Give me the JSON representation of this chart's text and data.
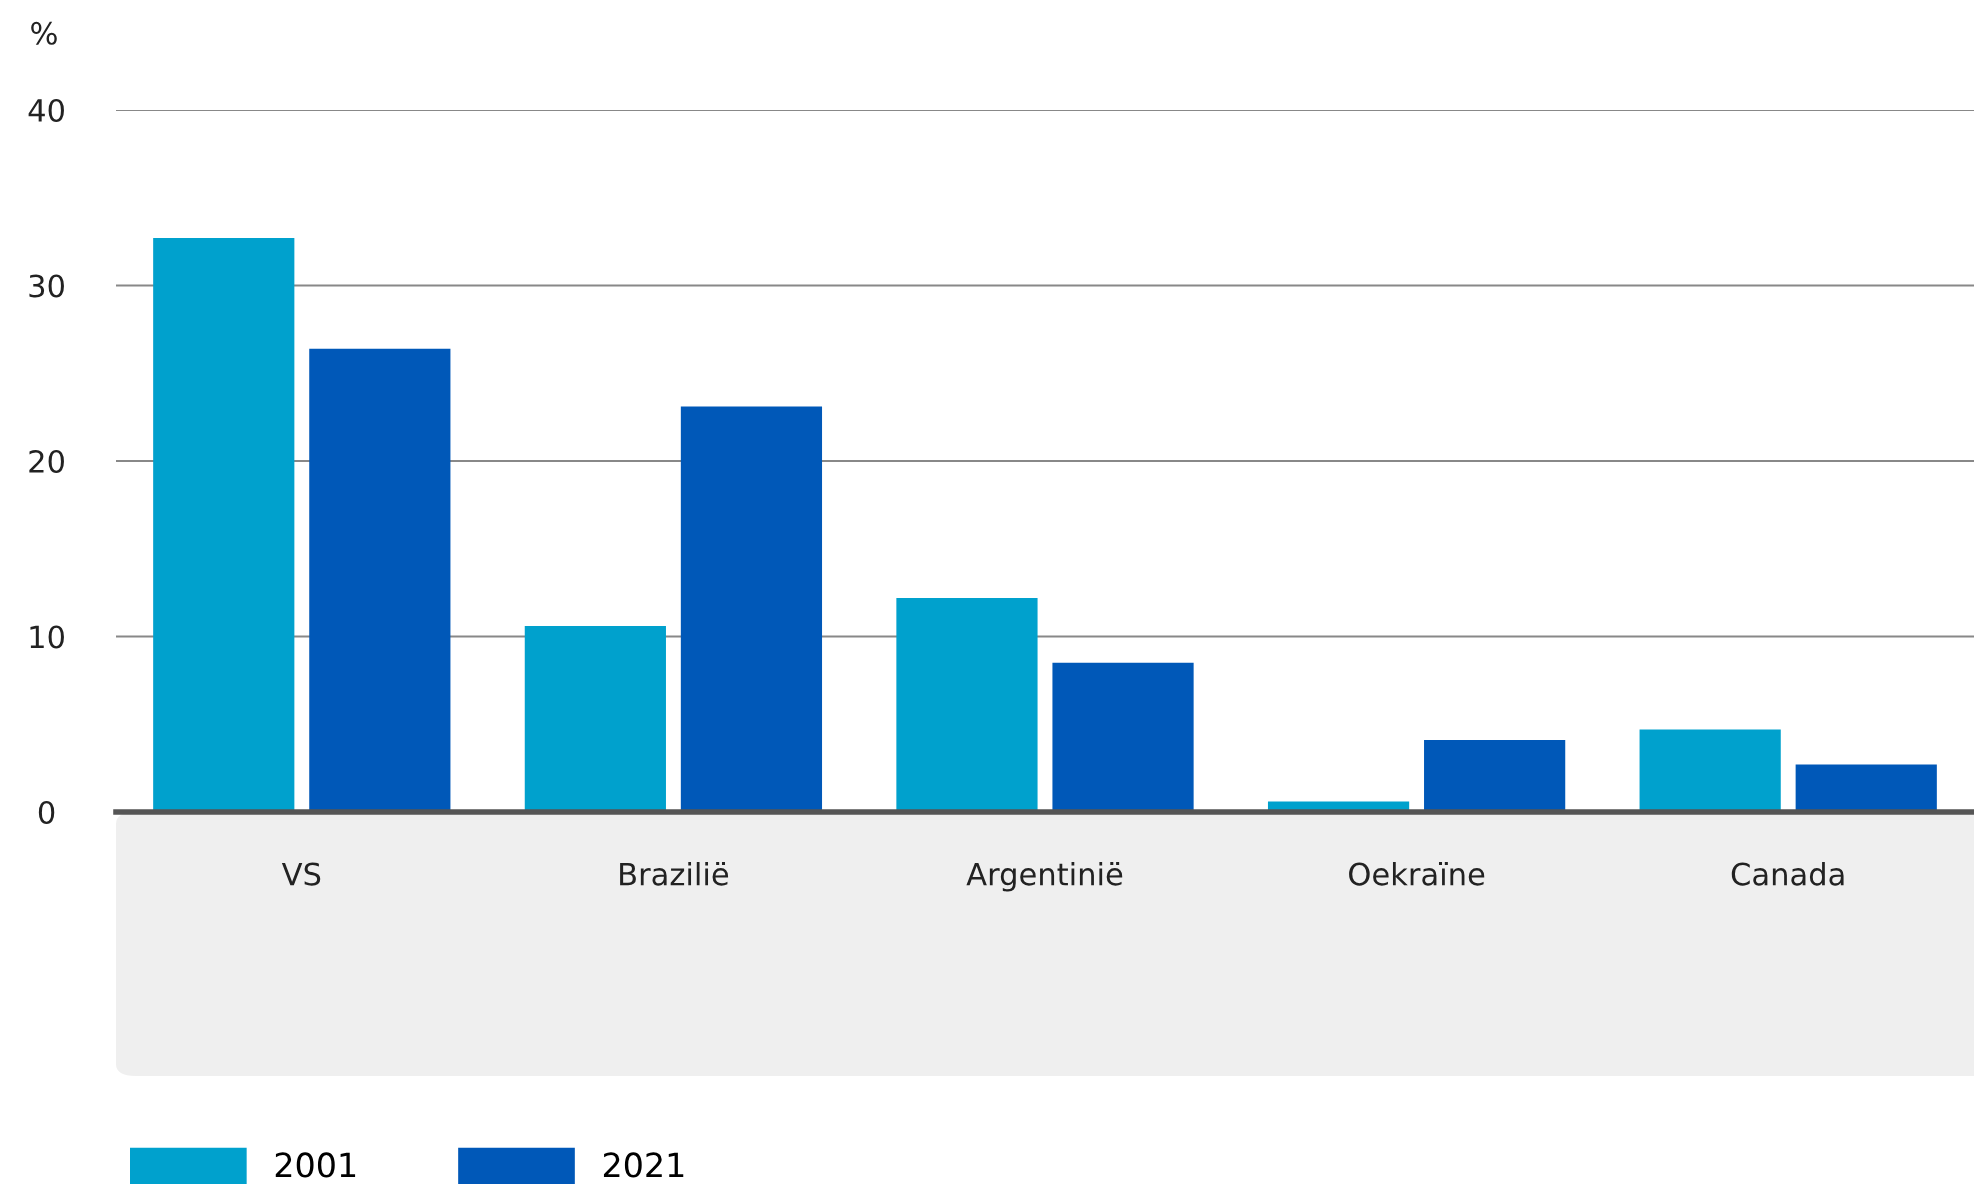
{
  "chart_data": {
    "type": "bar",
    "ylabel": "%",
    "categories": [
      "VS",
      "Brazilië",
      "Argentinië",
      "Oekraïne",
      "Canada"
    ],
    "series": [
      {
        "name": "2001",
        "color": "#00a1cd",
        "values": [
          32.7,
          10.6,
          12.2,
          0.6,
          4.7
        ]
      },
      {
        "name": "2021",
        "color": "#0058b8",
        "values": [
          26.4,
          23.1,
          8.5,
          4.1,
          2.7
        ]
      }
    ],
    "ylim": [
      0,
      40
    ],
    "yticks": [
      0,
      10,
      20,
      30,
      40
    ],
    "grid": "y",
    "legend": "bottom"
  }
}
